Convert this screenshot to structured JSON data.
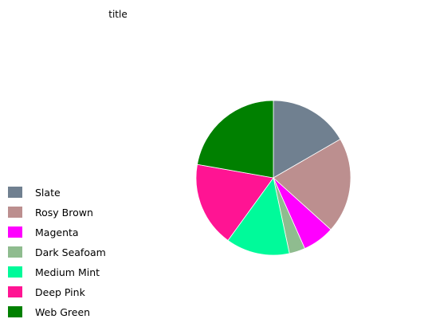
{
  "chart_data": {
    "type": "pie",
    "title": "title",
    "start_angle_deg": 0,
    "direction": "clockwise",
    "legend_position": "left",
    "series": [
      {
        "name": "Slate",
        "value": 15,
        "color": "#708090"
      },
      {
        "name": "Rosy Brown",
        "value": 18,
        "color": "#bc8f8f"
      },
      {
        "name": "Magenta",
        "value": 6,
        "color": "#ff00ff"
      },
      {
        "name": "Dark Seafoam",
        "value": 3,
        "color": "#8fbc8f"
      },
      {
        "name": "Medium Mint",
        "value": 12,
        "color": "#00fa9a"
      },
      {
        "name": "Deep Pink",
        "value": 16,
        "color": "#ff1493"
      },
      {
        "name": "Web Green",
        "value": 20,
        "color": "#008000"
      }
    ]
  }
}
